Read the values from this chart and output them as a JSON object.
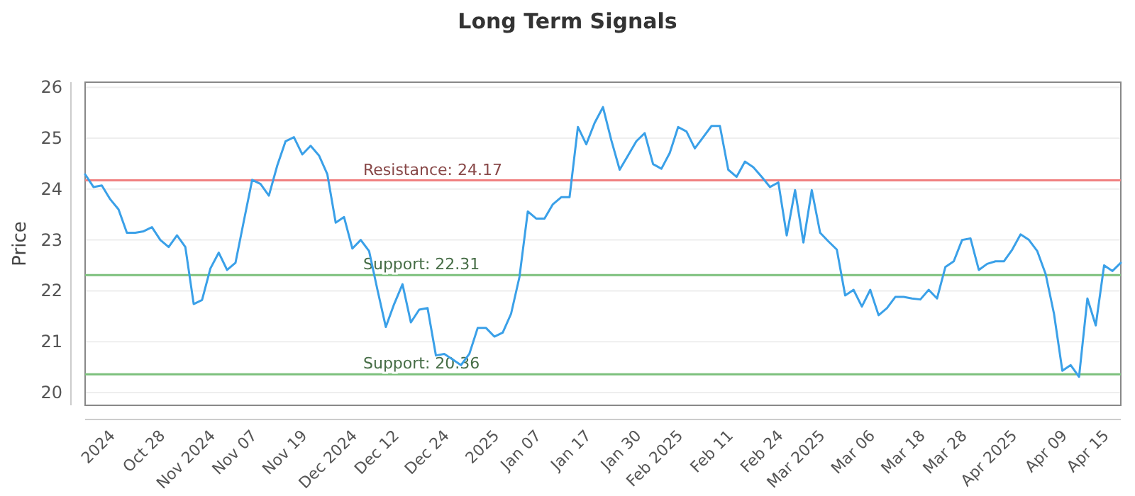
{
  "chart_data": {
    "type": "line",
    "title": "Long Term Signals",
    "ylabel": "Price",
    "categories": [
      null,
      null,
      null,
      "2024",
      null,
      null,
      null,
      null,
      null,
      "Oct 28",
      null,
      null,
      null,
      null,
      null,
      "Nov 2024",
      null,
      null,
      null,
      null,
      "Nov 07",
      null,
      null,
      null,
      null,
      null,
      "Nov 19",
      null,
      null,
      null,
      null,
      null,
      "Dec 2024",
      null,
      null,
      null,
      null,
      "Dec 12",
      null,
      null,
      null,
      null,
      null,
      "Dec 24",
      null,
      null,
      null,
      null,
      null,
      "2025",
      null,
      null,
      null,
      null,
      "Jan 07",
      null,
      null,
      null,
      null,
      null,
      "Jan 17",
      null,
      null,
      null,
      null,
      null,
      "Jan 30",
      null,
      null,
      null,
      null,
      "Feb 2025",
      null,
      null,
      null,
      null,
      null,
      "Feb 11",
      null,
      null,
      null,
      null,
      null,
      "Feb 24",
      null,
      null,
      null,
      null,
      "Mar 2025",
      null,
      null,
      null,
      null,
      null,
      "Mar 06",
      null,
      null,
      null,
      null,
      null,
      "Mar 18",
      null,
      null,
      null,
      null,
      "Mar 28",
      null,
      null,
      null,
      null,
      null,
      "Apr 2025",
      null,
      null,
      null,
      null,
      null,
      "Apr 09",
      null,
      null,
      null,
      null,
      "Apr 15",
      null,
      null
    ],
    "series": [
      {
        "color": "#3aa0e8",
        "values": [
          24.29,
          24.04,
          24.07,
          23.8,
          23.6,
          23.14,
          23.14,
          23.17,
          23.25,
          23.0,
          22.86,
          23.09,
          22.86,
          21.74,
          21.82,
          22.44,
          22.75,
          22.41,
          22.55,
          23.37,
          24.18,
          24.1,
          23.87,
          24.46,
          24.94,
          25.02,
          24.68,
          24.85,
          24.66,
          24.29,
          23.34,
          23.45,
          22.83,
          23.0,
          22.78,
          22.02,
          21.29,
          21.74,
          22.13,
          21.38,
          21.63,
          21.66,
          20.73,
          20.76,
          20.65,
          20.54,
          20.76,
          21.27,
          21.27,
          21.1,
          21.18,
          21.55,
          22.27,
          23.56,
          23.42,
          23.42,
          23.7,
          23.84,
          23.84,
          25.22,
          24.88,
          25.3,
          25.61,
          24.96,
          24.38,
          24.66,
          24.94,
          25.1,
          24.49,
          24.4,
          24.71,
          25.22,
          25.13,
          24.8,
          25.02,
          25.24,
          25.24,
          24.38,
          24.24,
          24.54,
          24.43,
          24.24,
          24.04,
          24.13,
          23.09,
          23.98,
          22.95,
          23.98,
          23.14,
          22.97,
          22.81,
          21.91,
          22.02,
          21.69,
          22.02,
          21.52,
          21.66,
          21.88,
          21.88,
          21.85,
          21.83,
          22.02,
          21.85,
          22.47,
          22.58,
          23.0,
          23.03,
          22.41,
          22.53,
          22.58,
          22.58,
          22.81,
          23.11,
          23.0,
          22.78,
          22.33,
          21.55,
          20.43,
          20.54,
          20.31,
          21.85,
          21.32,
          22.5,
          22.39,
          22.55
        ]
      }
    ],
    "ylim": [
      19.75,
      26.1
    ],
    "yticks": [
      20,
      21,
      22,
      23,
      24,
      25,
      26
    ],
    "grid": "y",
    "marker": "none",
    "line_style": "solid",
    "ref_lines": [
      {
        "axis": "y",
        "value": 24.17,
        "label": "Resistance: 24.17",
        "color": "#f08080"
      },
      {
        "axis": "y",
        "value": 22.31,
        "label": "Support: 22.31",
        "color": "#7cc07c"
      },
      {
        "axis": "y",
        "value": 20.36,
        "label": "Support: 20.36",
        "color": "#7cc07c"
      }
    ]
  }
}
